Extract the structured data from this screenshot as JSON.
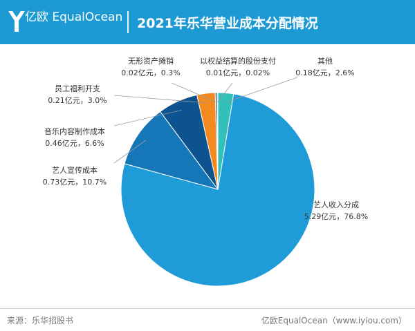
{
  "header": {
    "brand_cn": "亿欧",
    "brand_en": "EqualOcean",
    "title": "2021年乐华营业成本分配情况"
  },
  "footer": {
    "source": "来源：乐华招股书",
    "credit": "亿欧EqualOcean（www.iyiou.com）"
  },
  "colors": {
    "header_bg": "#1d9ad4"
  },
  "chart_data": {
    "type": "pie",
    "title": "2021年乐华营业成本分配情况",
    "unit": "亿元",
    "slices": [
      {
        "name": "艺人收入分成",
        "value": 5.29,
        "percent": 76.8,
        "value_label": "5.29亿元，76.8%",
        "color": "#1f9bd7"
      },
      {
        "name": "艺人宣传成本",
        "value": 0.73,
        "percent": 10.7,
        "value_label": "0.73亿元，10.7%",
        "color": "#1677b8"
      },
      {
        "name": "音乐内容制作成本",
        "value": 0.46,
        "percent": 6.6,
        "value_label": "0.46亿元，6.6%",
        "color": "#0d5390"
      },
      {
        "name": "员工福利开支",
        "value": 0.21,
        "percent": 3.0,
        "value_label": "0.21亿元，3.0%",
        "color": "#f38a1f"
      },
      {
        "name": "无形资产摊销",
        "value": 0.02,
        "percent": 0.3,
        "value_label": "0.02亿元，0.3%",
        "color": "#1a4d77"
      },
      {
        "name": "以权益结算的股份支付",
        "value": 0.01,
        "percent": 0.02,
        "value_label": "0.01亿元，0.02%",
        "color": "#9aa8b5"
      },
      {
        "name": "其他",
        "value": 0.18,
        "percent": 2.6,
        "value_label": "0.18亿元，2.6%",
        "color": "#33c0b8"
      }
    ]
  }
}
